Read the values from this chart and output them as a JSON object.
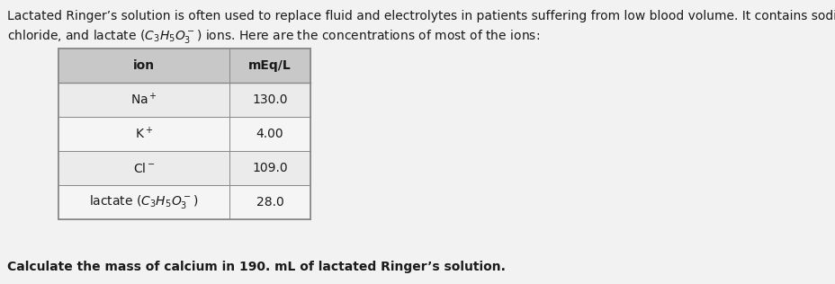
{
  "background_color": "#e8e8e8",
  "page_bg": "#f2f2f2",
  "intro_line1": "Lactated Ringer’s solution is often used to replace fluid and electrolytes in patients suffering from low blood volume. It contains sodium, potassum, calcium,",
  "intro_line2_plain": "chloride, and lactate ",
  "intro_line2_formula": "$\\left(C_3H_5O_3^-\\right)$",
  "intro_line2_end": " ions. Here are the concentrations of most of the ions:",
  "header_col1": "ion",
  "header_col2": "mEq/L",
  "rows": [
    [
      "Na$^+$",
      "130.0"
    ],
    [
      "K$^+$",
      "4.00"
    ],
    [
      "Cl$^-$",
      "109.0"
    ],
    [
      "lactate $\\left(C_3H_5O_3^-\\right)$",
      "28.0"
    ]
  ],
  "footer": "Calculate the mass of calcium in 190. mL of lactated Ringer’s solution.",
  "text_color": "#1a1a1a",
  "table_line_color": "#888888",
  "header_bg": "#c8c8c8",
  "row_bg": "#f8f8f8",
  "font_size": 10,
  "table_font_size": 10
}
